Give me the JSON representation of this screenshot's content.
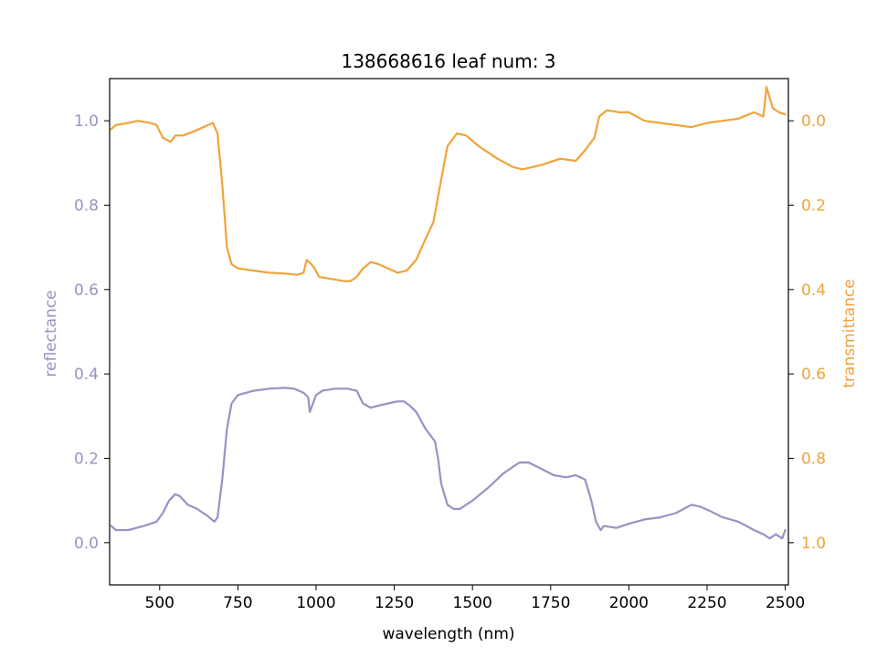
{
  "colors": {
    "reflectance": "#9892c4",
    "transmittance": "#f0a33a",
    "axis": "#000000",
    "background": "#ffffff"
  },
  "chart_data": {
    "type": "line",
    "title": "138668616 leaf num: 3",
    "xlabel": "wavelength (nm)",
    "ylabel_left": "reflectance",
    "ylabel_right": "transmittance",
    "xlim": [
      340,
      2510
    ],
    "ylim_left": [
      -0.1,
      1.1
    ],
    "ylim_right_inverted": [
      1.1,
      -0.1
    ],
    "grid": false,
    "legend": "none",
    "x_ticks": [
      500,
      750,
      1000,
      1250,
      1500,
      1750,
      2000,
      2250,
      2500
    ],
    "x_tick_labels": [
      "500",
      "750",
      "1000",
      "1250",
      "1500",
      "1750",
      "2000",
      "2250",
      "2500"
    ],
    "y_left_ticks": [
      0.0,
      0.2,
      0.4,
      0.6,
      0.8,
      1.0
    ],
    "y_left_tick_labels": [
      "0.0",
      "0.2",
      "0.4",
      "0.6",
      "0.8",
      "1.0"
    ],
    "y_right_ticks": [
      0.0,
      0.2,
      0.4,
      0.6,
      0.8,
      1.0
    ],
    "y_right_tick_labels": [
      "0.0",
      "0.2",
      "0.4",
      "0.6",
      "0.8",
      "1.0"
    ],
    "series": [
      {
        "axis": "left",
        "color_key": "reflectance",
        "points": [
          [
            345,
            0.04
          ],
          [
            360,
            0.03
          ],
          [
            400,
            0.03
          ],
          [
            450,
            0.04
          ],
          [
            490,
            0.05
          ],
          [
            510,
            0.07
          ],
          [
            530,
            0.1
          ],
          [
            550,
            0.115
          ],
          [
            565,
            0.11
          ],
          [
            590,
            0.09
          ],
          [
            620,
            0.08
          ],
          [
            650,
            0.065
          ],
          [
            675,
            0.05
          ],
          [
            685,
            0.06
          ],
          [
            700,
            0.15
          ],
          [
            715,
            0.27
          ],
          [
            730,
            0.33
          ],
          [
            750,
            0.35
          ],
          [
            800,
            0.36
          ],
          [
            850,
            0.365
          ],
          [
            900,
            0.367
          ],
          [
            930,
            0.365
          ],
          [
            960,
            0.355
          ],
          [
            975,
            0.345
          ],
          [
            980,
            0.31
          ],
          [
            990,
            0.33
          ],
          [
            1000,
            0.35
          ],
          [
            1020,
            0.36
          ],
          [
            1060,
            0.365
          ],
          [
            1100,
            0.365
          ],
          [
            1130,
            0.36
          ],
          [
            1150,
            0.33
          ],
          [
            1175,
            0.32
          ],
          [
            1200,
            0.325
          ],
          [
            1230,
            0.33
          ],
          [
            1260,
            0.335
          ],
          [
            1280,
            0.335
          ],
          [
            1300,
            0.325
          ],
          [
            1320,
            0.31
          ],
          [
            1350,
            0.27
          ],
          [
            1380,
            0.24
          ],
          [
            1390,
            0.2
          ],
          [
            1400,
            0.14
          ],
          [
            1420,
            0.09
          ],
          [
            1440,
            0.08
          ],
          [
            1460,
            0.08
          ],
          [
            1480,
            0.09
          ],
          [
            1500,
            0.1
          ],
          [
            1550,
            0.13
          ],
          [
            1600,
            0.165
          ],
          [
            1650,
            0.19
          ],
          [
            1680,
            0.19
          ],
          [
            1720,
            0.175
          ],
          [
            1760,
            0.16
          ],
          [
            1800,
            0.155
          ],
          [
            1830,
            0.16
          ],
          [
            1860,
            0.15
          ],
          [
            1880,
            0.1
          ],
          [
            1895,
            0.05
          ],
          [
            1910,
            0.03
          ],
          [
            1920,
            0.04
          ],
          [
            1960,
            0.035
          ],
          [
            2000,
            0.045
          ],
          [
            2050,
            0.055
          ],
          [
            2100,
            0.06
          ],
          [
            2150,
            0.07
          ],
          [
            2200,
            0.09
          ],
          [
            2230,
            0.085
          ],
          [
            2260,
            0.075
          ],
          [
            2300,
            0.06
          ],
          [
            2350,
            0.05
          ],
          [
            2400,
            0.03
          ],
          [
            2430,
            0.02
          ],
          [
            2450,
            0.01
          ],
          [
            2470,
            0.02
          ],
          [
            2490,
            0.01
          ],
          [
            2500,
            0.03
          ]
        ]
      },
      {
        "axis": "right",
        "color_key": "transmittance",
        "points": [
          [
            345,
            0.02
          ],
          [
            360,
            0.01
          ],
          [
            400,
            0.005
          ],
          [
            430,
            0.0
          ],
          [
            470,
            0.005
          ],
          [
            490,
            0.01
          ],
          [
            510,
            0.04
          ],
          [
            535,
            0.05
          ],
          [
            550,
            0.035
          ],
          [
            575,
            0.035
          ],
          [
            610,
            0.025
          ],
          [
            640,
            0.015
          ],
          [
            670,
            0.005
          ],
          [
            685,
            0.03
          ],
          [
            700,
            0.15
          ],
          [
            715,
            0.3
          ],
          [
            730,
            0.34
          ],
          [
            750,
            0.35
          ],
          [
            800,
            0.355
          ],
          [
            850,
            0.36
          ],
          [
            900,
            0.362
          ],
          [
            940,
            0.365
          ],
          [
            960,
            0.36
          ],
          [
            970,
            0.33
          ],
          [
            985,
            0.34
          ],
          [
            995,
            0.35
          ],
          [
            1010,
            0.37
          ],
          [
            1050,
            0.375
          ],
          [
            1090,
            0.38
          ],
          [
            1110,
            0.38
          ],
          [
            1130,
            0.37
          ],
          [
            1150,
            0.35
          ],
          [
            1175,
            0.335
          ],
          [
            1200,
            0.34
          ],
          [
            1230,
            0.35
          ],
          [
            1260,
            0.36
          ],
          [
            1290,
            0.355
          ],
          [
            1320,
            0.33
          ],
          [
            1350,
            0.28
          ],
          [
            1375,
            0.24
          ],
          [
            1400,
            0.14
          ],
          [
            1420,
            0.06
          ],
          [
            1450,
            0.03
          ],
          [
            1480,
            0.035
          ],
          [
            1520,
            0.06
          ],
          [
            1580,
            0.09
          ],
          [
            1630,
            0.11
          ],
          [
            1660,
            0.115
          ],
          [
            1720,
            0.105
          ],
          [
            1780,
            0.09
          ],
          [
            1830,
            0.095
          ],
          [
            1860,
            0.07
          ],
          [
            1890,
            0.04
          ],
          [
            1905,
            -0.01
          ],
          [
            1930,
            -0.025
          ],
          [
            1970,
            -0.02
          ],
          [
            2000,
            -0.02
          ],
          [
            2050,
            0.0
          ],
          [
            2100,
            0.005
          ],
          [
            2150,
            0.01
          ],
          [
            2200,
            0.015
          ],
          [
            2250,
            0.005
          ],
          [
            2300,
            0.0
          ],
          [
            2350,
            -0.005
          ],
          [
            2400,
            -0.02
          ],
          [
            2430,
            -0.01
          ],
          [
            2440,
            -0.08
          ],
          [
            2460,
            -0.03
          ],
          [
            2480,
            -0.02
          ],
          [
            2500,
            -0.015
          ]
        ]
      }
    ]
  }
}
